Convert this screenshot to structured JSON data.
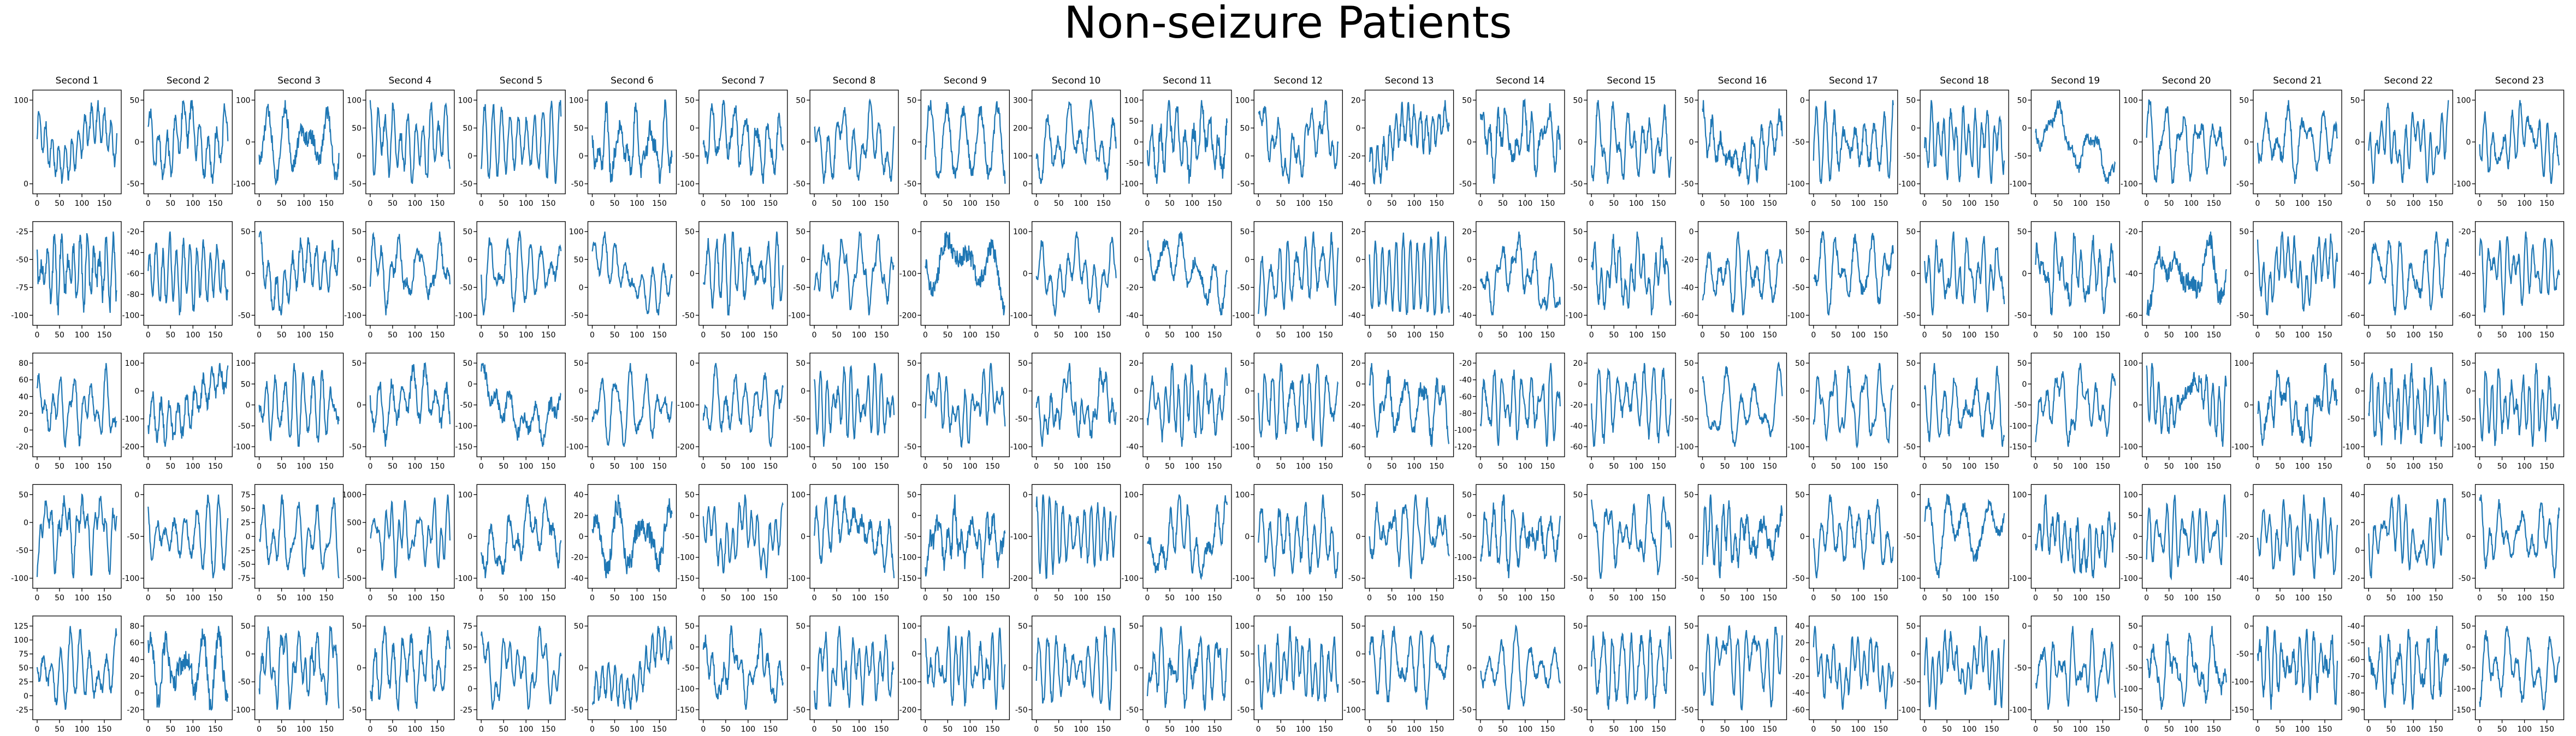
{
  "title": "Non-seizure Patients",
  "chart_data": {
    "type": "line",
    "title": "Non-seizure Patients",
    "layout": {
      "rows": 5,
      "cols": 23
    },
    "x_range": [
      0,
      178
    ],
    "x_ticks": [
      0,
      50,
      100,
      150
    ],
    "column_titles": [
      "Second 1",
      "Second 2",
      "Second 3",
      "Second 4",
      "Second 5",
      "Second 6",
      "Second 7",
      "Second 8",
      "Second 9",
      "Second 10",
      "Second 11",
      "Second 12",
      "Second 13",
      "Second 14",
      "Second 15",
      "Second 16",
      "Second 17",
      "Second 18",
      "Second 19",
      "Second 20",
      "Second 21",
      "Second 22",
      "Second 23"
    ],
    "line_color": "#1f77b4",
    "y_ticks": [
      [
        [
          0,
          100
        ],
        [
          -50,
          0,
          50
        ],
        [
          -100,
          0,
          100
        ],
        [
          -50,
          0,
          50,
          100
        ],
        [
          -50,
          0,
          50,
          100
        ],
        [
          -50,
          0,
          50,
          100
        ],
        [
          -100,
          -50,
          0,
          50
        ],
        [
          -50,
          0,
          50
        ],
        [
          -50,
          0,
          50
        ],
        [
          0,
          100,
          200,
          300
        ],
        [
          -100,
          -50,
          0,
          50,
          100
        ],
        [
          -50,
          0,
          50,
          100
        ],
        [
          -40,
          -20,
          0,
          20
        ],
        [
          -50,
          0,
          50
        ],
        [
          -50,
          0,
          50
        ],
        [
          -50,
          0,
          50
        ],
        [
          -100,
          -50,
          0
        ],
        [
          -100,
          -50,
          0,
          50
        ],
        [
          -100,
          -50,
          0,
          50
        ],
        [
          -100,
          0,
          100
        ],
        [
          -50,
          0,
          50
        ],
        [
          -50,
          0,
          50
        ],
        [
          -100,
          0,
          100
        ]
      ],
      [
        [
          -100,
          -75,
          -50,
          -25
        ],
        [
          -100,
          -80,
          -60,
          -40,
          -20
        ],
        [
          -50,
          0,
          50
        ],
        [
          -100,
          -50,
          0,
          50
        ],
        [
          -100,
          -50,
          0,
          50
        ],
        [
          -50,
          0,
          50,
          100
        ],
        [
          -50,
          0,
          50
        ],
        [
          -100,
          -50,
          0,
          50
        ],
        [
          -200,
          -100,
          0
        ],
        [
          -100,
          0,
          100
        ],
        [
          -40,
          -20,
          0,
          20
        ],
        [
          -100,
          -50,
          0,
          50
        ],
        [
          -40,
          -20,
          0,
          20
        ],
        [
          -40,
          -20,
          0,
          20
        ],
        [
          -100,
          -50,
          0,
          50
        ],
        [
          -60,
          -40,
          -20,
          0
        ],
        [
          -100,
          -50,
          0,
          50
        ],
        [
          -50,
          0,
          50
        ],
        [
          -50,
          0,
          50
        ],
        [
          -60,
          -40,
          -20
        ],
        [
          -50,
          0,
          50
        ],
        [
          -60,
          -40,
          -20
        ],
        [
          -60,
          -40,
          -20
        ]
      ],
      [
        [
          -20,
          0,
          20,
          40,
          60,
          80
        ],
        [
          -200,
          -100,
          0,
          100
        ],
        [
          -100,
          -50,
          0,
          50,
          100
        ],
        [
          -50,
          0,
          50
        ],
        [
          -150,
          -100,
          -50,
          0,
          50
        ],
        [
          -100,
          -50,
          0,
          50
        ],
        [
          -200,
          -100,
          0
        ],
        [
          -100,
          -50,
          0,
          50
        ],
        [
          -50,
          0,
          50
        ],
        [
          -100,
          -50,
          0,
          50
        ],
        [
          -40,
          -20,
          0,
          20
        ],
        [
          -100,
          -50,
          0,
          50
        ],
        [
          -60,
          -40,
          -20,
          0,
          20
        ],
        [
          -120,
          -100,
          -80,
          -60,
          -40,
          -20
        ],
        [
          -60,
          -40,
          -20,
          0,
          20
        ],
        [
          -100,
          -50,
          0,
          50
        ],
        [
          -100,
          -50,
          0,
          50
        ],
        [
          -50,
          0,
          50
        ],
        [
          -150,
          -100,
          -50,
          0,
          50
        ],
        [
          -100,
          0,
          100
        ],
        [
          -100,
          0,
          100
        ],
        [
          -100,
          -50,
          0,
          50
        ],
        [
          -100,
          -50,
          0,
          50
        ]
      ],
      [
        [
          -100,
          -50,
          0,
          50
        ],
        [
          -100,
          -50,
          0
        ],
        [
          -75,
          -50,
          -25,
          0,
          25,
          50,
          75
        ],
        [
          -500,
          0,
          500,
          1000
        ],
        [
          -100,
          0,
          100
        ],
        [
          -40,
          -20,
          0,
          20,
          40
        ],
        [
          -150,
          -100,
          -50,
          0,
          50
        ],
        [
          -100,
          0,
          100
        ],
        [
          -150,
          -100,
          -50,
          0,
          50
        ],
        [
          -200,
          -100,
          0
        ],
        [
          -100,
          0,
          100
        ],
        [
          -100,
          0,
          100
        ],
        [
          -50,
          0,
          50
        ],
        [
          -150,
          -100,
          -50,
          0,
          50
        ],
        [
          -50,
          0,
          50
        ],
        [
          -50,
          0,
          50
        ],
        [
          -50,
          0,
          50
        ],
        [
          -100,
          -50,
          0
        ],
        [
          -100,
          0,
          100
        ],
        [
          -100,
          -50,
          0,
          50,
          100
        ],
        [
          -40,
          -20,
          0
        ],
        [
          -20,
          0,
          20,
          40
        ],
        [
          -50,
          0,
          50
        ]
      ],
      [
        [
          -25,
          0,
          25,
          50,
          75,
          100,
          125
        ],
        [
          -20,
          0,
          20,
          40,
          60,
          80
        ],
        [
          -100,
          -50,
          0,
          50
        ],
        [
          -50,
          0,
          50
        ],
        [
          -25,
          0,
          25,
          50,
          75
        ],
        [
          -50,
          0,
          50
        ],
        [
          -150,
          -100,
          -50,
          0,
          50
        ],
        [
          -50,
          0,
          50
        ],
        [
          -200,
          -100,
          0,
          100
        ],
        [
          -50,
          0,
          50
        ],
        [
          -50,
          0,
          50
        ],
        [
          -50,
          0,
          50,
          100
        ],
        [
          -100,
          -50,
          0,
          50
        ],
        [
          -50,
          0,
          50
        ],
        [
          -50,
          0,
          50
        ],
        [
          -50,
          0,
          50
        ],
        [
          -60,
          -40,
          -20,
          0,
          20,
          40
        ],
        [
          -100,
          -50,
          0,
          50
        ],
        [
          -100,
          -50,
          0
        ],
        [
          -150,
          -100,
          -50,
          0,
          50
        ],
        [
          -150,
          -100,
          -50,
          0
        ],
        [
          -90,
          -80,
          -70,
          -60,
          -50,
          -40
        ],
        [
          -150,
          -100,
          -50,
          0,
          50
        ]
      ]
    ]
  }
}
